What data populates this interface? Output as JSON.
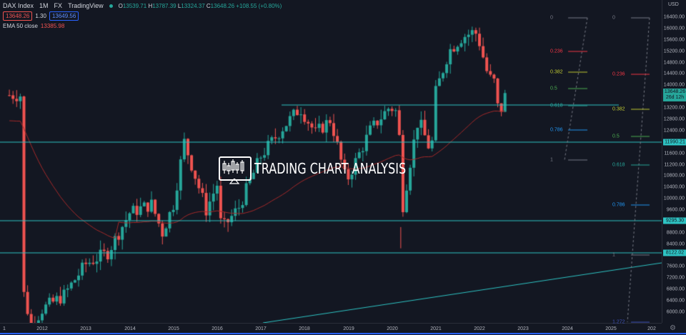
{
  "header": {
    "symbol": "DAX Index",
    "interval": "1M",
    "exchange": "FX",
    "source": "TradingView",
    "ohlc": {
      "o_label": "O",
      "o": "13539.71",
      "h_label": "H",
      "h": "13787.39",
      "l_label": "L",
      "l": "13324.37",
      "c_label": "C",
      "c": "13648.26",
      "change": "+108.55 (+0.80%)"
    },
    "bid": "13648.26",
    "spread": "1.30",
    "ask": "13649.56",
    "indicator_label": "EMA 50 close",
    "indicator_value": "13385.98"
  },
  "colors": {
    "background": "#131722",
    "up": "#26a69a",
    "down": "#ef5350",
    "ema": "#a52a2a",
    "level_line": "#2ec4c4",
    "fib_0": "#787b86",
    "fib_0236": "#f23645",
    "fib_0382": "#c0ca33",
    "fib_05": "#4caf50",
    "fib_0618": "#26a69a",
    "fib_0786": "#2196f3",
    "fib_1272": "#3f51b5"
  },
  "watermark": "TRADING CHART ANALYSIS",
  "price_axis": {
    "currency": "USD",
    "labels": [
      "16400.00",
      "16000.00",
      "15600.00",
      "15200.00",
      "14800.00",
      "14400.00",
      "14000.00",
      "13200.00",
      "12800.00",
      "12400.00",
      "11600.00",
      "11200.00",
      "10800.00",
      "10400.00",
      "10000.00",
      "9600.00",
      "8800.00",
      "8400.00",
      "7600.00",
      "7200.00",
      "6800.00",
      "6400.00",
      "6000.00"
    ],
    "current_price": "13648.26",
    "countdown": "26d 12h",
    "level_tags": [
      "11990.21",
      "9295.30",
      "8122.02"
    ]
  },
  "time_axis": {
    "labels": [
      "1",
      "2012",
      "2013",
      "2014",
      "2015",
      "2016",
      "2017",
      "2018",
      "2019",
      "2020",
      "2021",
      "2022",
      "2023",
      "2024",
      "2025",
      "202"
    ]
  },
  "chart_data": {
    "type": "candlestick",
    "title": "DAX Index 1M FX",
    "xlabel": "",
    "ylabel": "USD",
    "ylim": [
      5800,
      16700
    ],
    "grid": false,
    "horizontal_levels": [
      13200,
      11990.21,
      9295.3,
      8122.02
    ],
    "ema_50_last": 13385.98,
    "trendline": {
      "from": {
        "x": "2017-01",
        "y": 5600
      },
      "to": {
        "x": "2026-01",
        "y": 7700
      }
    },
    "fib_retracement_1": {
      "levels": [
        "0",
        "0.236",
        "0.382",
        "0.5",
        "0.618",
        "0.786",
        "1"
      ],
      "prices": [
        16300,
        15150,
        14450,
        13850,
        13230,
        12400,
        11380
      ]
    },
    "fib_retracement_2": {
      "levels": [
        "0",
        "0.236",
        "0.382",
        "0.5",
        "0.618",
        "0.786",
        "1",
        "1.272"
      ],
      "prices": [
        16300,
        14300,
        13100,
        12100,
        11150,
        9750,
        8100,
        5850
      ]
    },
    "approx_yearly_closes": {
      "x": [
        "2011",
        "2012",
        "2013",
        "2014",
        "2015",
        "2016",
        "2017",
        "2018",
        "2019",
        "2020",
        "2021",
        "2022"
      ],
      "close": [
        5900,
        7600,
        9550,
        9800,
        10750,
        11450,
        12900,
        10550,
        13250,
        13700,
        15900,
        13648
      ]
    }
  }
}
